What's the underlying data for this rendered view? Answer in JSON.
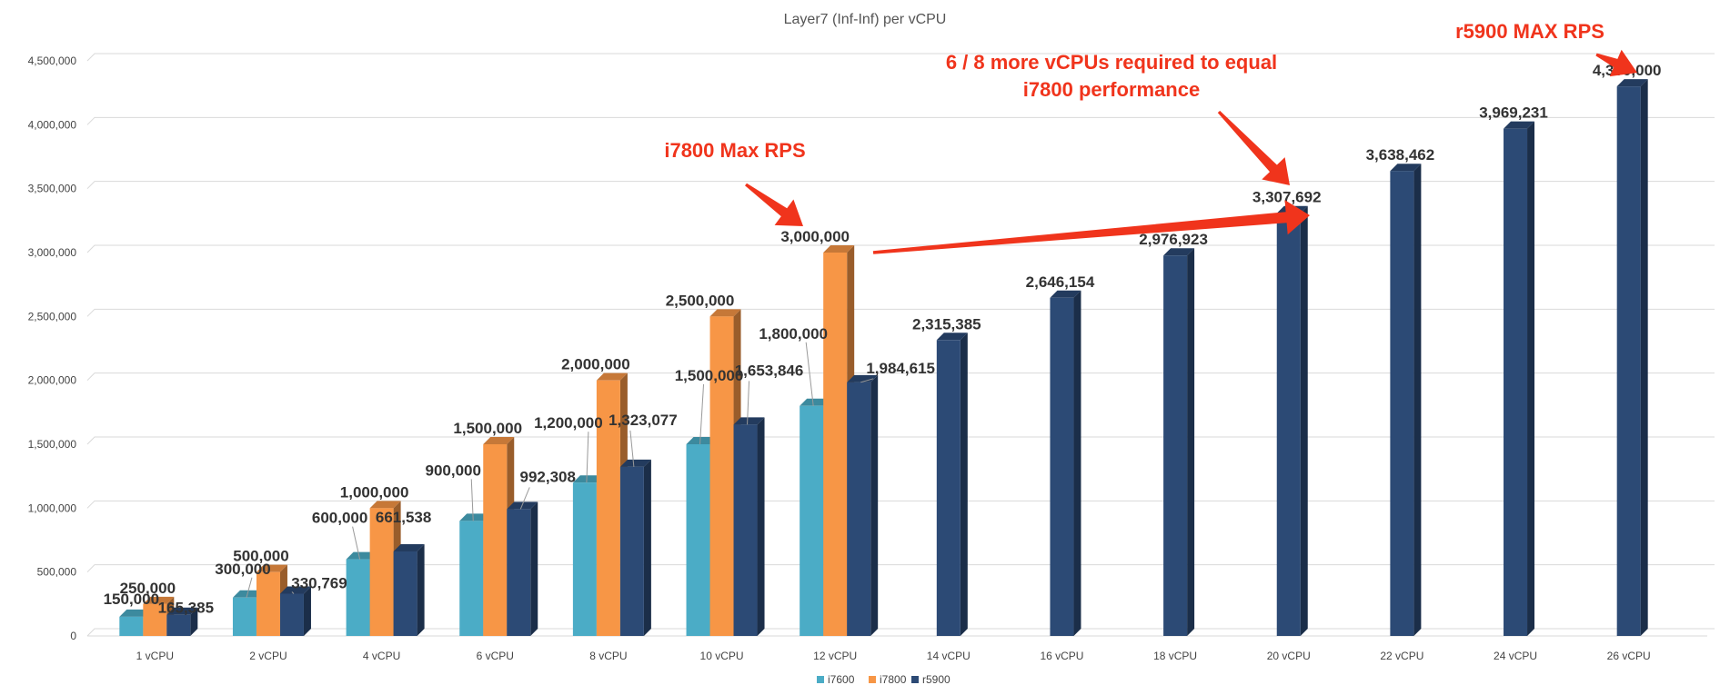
{
  "chart_data": {
    "type": "bar",
    "title": "Layer7 (Inf-Inf) per vCPU",
    "xlabel": "",
    "ylabel": "",
    "ylim": [
      0,
      4500000
    ],
    "yticks": [
      "0",
      "500,000",
      "1,000,000",
      "1,500,000",
      "2,000,000",
      "2,500,000",
      "3,000,000",
      "3,500,000",
      "4,000,000",
      "4,500,000"
    ],
    "grid": true,
    "legend_position": "bottom",
    "categories": [
      "1 vCPU",
      "2 vCPU",
      "4 vCPU",
      "6 vCPU",
      "8 vCPU",
      "10 vCPU",
      "12 vCPU",
      "14 vCPU",
      "16 vCPU",
      "18 vCPU",
      "20 vCPU",
      "22 vCPU",
      "24 vCPU",
      "26 vCPU"
    ],
    "series": [
      {
        "name": "i7600",
        "color": "#4bacc6",
        "values": [
          150000,
          300000,
          600000,
          900000,
          1200000,
          1500000,
          1800000,
          null,
          null,
          null,
          null,
          null,
          null,
          null
        ],
        "labels": [
          "150,000",
          "300,000",
          "600,000",
          "900,000",
          "1,200,000",
          "1,500,000",
          "1,800,000",
          null,
          null,
          null,
          null,
          null,
          null,
          null
        ]
      },
      {
        "name": "i7800",
        "color": "#f79646",
        "values": [
          250000,
          500000,
          1000000,
          1500000,
          2000000,
          2500000,
          3000000,
          null,
          null,
          null,
          null,
          null,
          null,
          null
        ],
        "labels": [
          "250,000",
          "500,000",
          "1,000,000",
          "1,500,000",
          "2,000,000",
          "2,500,000",
          "3,000,000",
          null,
          null,
          null,
          null,
          null,
          null,
          null
        ]
      },
      {
        "name": "r5900",
        "color": "#2c4a75",
        "values": [
          165385,
          330769,
          661538,
          992308,
          1323077,
          1653846,
          1984615,
          2315385,
          2646154,
          2976923,
          3307692,
          3638462,
          3969231,
          4300000
        ],
        "labels": [
          "165,385",
          "330,769",
          "661,538",
          "992,308",
          "1,323,077",
          "1,653,846",
          "1,984,615",
          "2,315,385",
          "2,646,154",
          "2,976,923",
          "3,307,692",
          "3,638,462",
          "3,969,231",
          "4,300,000"
        ]
      }
    ],
    "annotations": [
      {
        "id": "i7800-max",
        "lines": [
          "i7800 Max RPS"
        ]
      },
      {
        "id": "more-vcpus",
        "lines": [
          "6 / 8 more vCPUs required to equal",
          "i7800 performance"
        ]
      },
      {
        "id": "r5900-max",
        "lines": [
          "r5900 MAX RPS"
        ]
      }
    ],
    "annotation_color": "#f0341c"
  }
}
